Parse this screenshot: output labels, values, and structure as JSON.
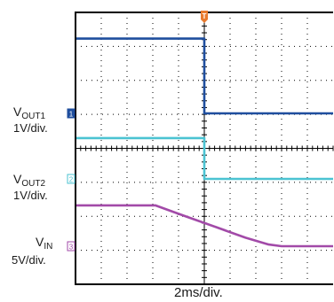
{
  "chart_data": {
    "type": "line",
    "title": "",
    "xlabel": "2ms/div.",
    "ylabel": "",
    "divisions": {
      "x": 10,
      "y": 8
    },
    "trigger_marker": "T",
    "channels": [
      {
        "id": "1",
        "base": "V",
        "sub": "OUT1",
        "scale": "1V/div.",
        "color": "#1f4e9e",
        "marker_color": "#1f4e9e",
        "points": [
          [
            0,
            2.2
          ],
          [
            5.0,
            2.2
          ],
          [
            5.0,
            0.0
          ],
          [
            10,
            0.0
          ]
        ]
      },
      {
        "id": "2",
        "base": "V",
        "sub": "OUT2",
        "scale": "1V/div.",
        "color": "#4bc3d2",
        "marker_color": "#4bc3d2",
        "points": [
          [
            0,
            1.2
          ],
          [
            5.0,
            1.2
          ],
          [
            5.0,
            0.0
          ],
          [
            10,
            0.0
          ]
        ]
      },
      {
        "id": "3",
        "base": "V",
        "sub": "IN",
        "scale": "5V/div.",
        "color": "#a24aa8",
        "marker_color": "#a24aa8",
        "points": [
          [
            0,
            1.2
          ],
          [
            3.1,
            1.2
          ],
          [
            4.2,
            0.9
          ],
          [
            5.5,
            0.55
          ],
          [
            6.6,
            0.25
          ],
          [
            7.5,
            0.05
          ],
          [
            8.0,
            0.0
          ],
          [
            10,
            0.0
          ]
        ]
      }
    ],
    "trigger_x_div": 5.0,
    "grid": true
  },
  "colors": {
    "grid": "#000000",
    "trigger": "#e87a2e"
  }
}
